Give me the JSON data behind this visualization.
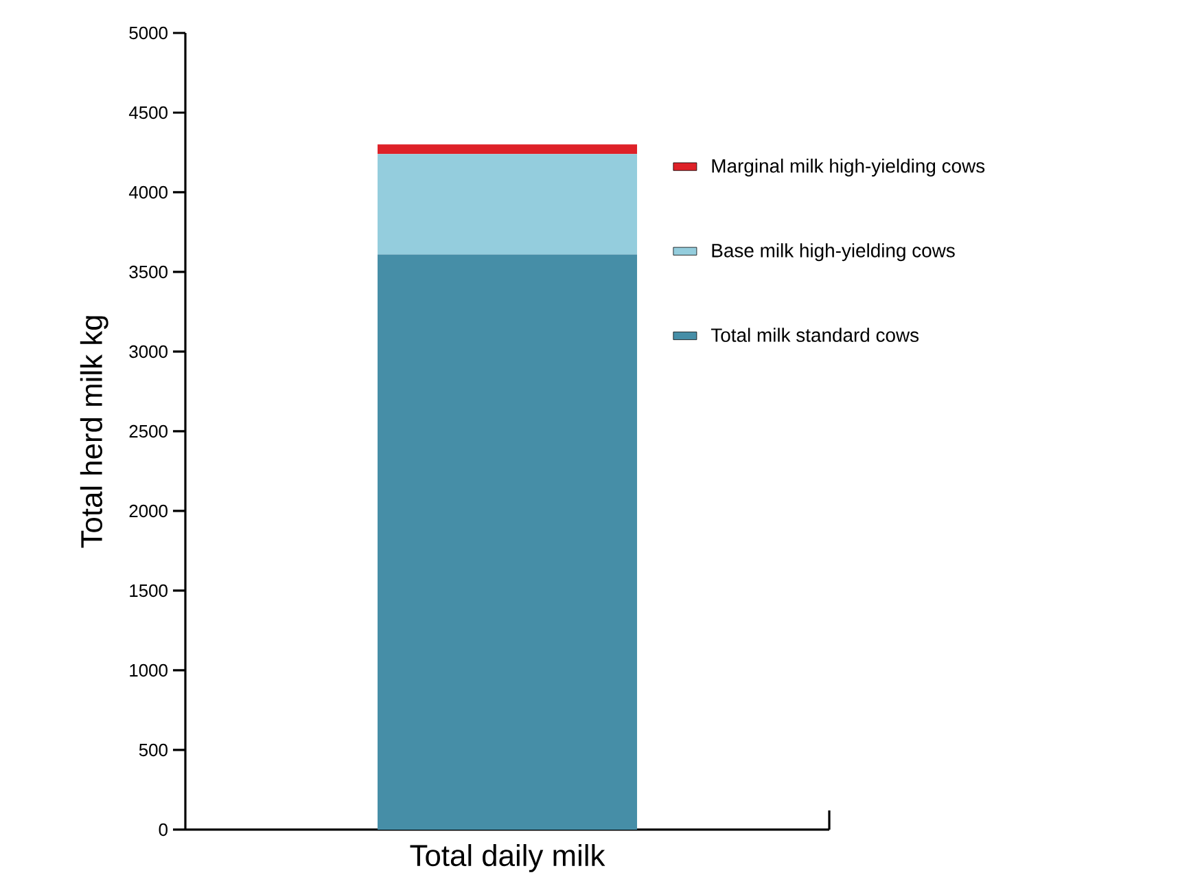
{
  "chart_data": {
    "type": "bar",
    "stacked": true,
    "ylabel": "Total herd milk kg",
    "categories": [
      "Total daily milk"
    ],
    "series": [
      {
        "name": "Total milk standard cows",
        "color": "#468ea7",
        "values": [
          3610
        ]
      },
      {
        "name": "Base milk high-yielding cows",
        "color": "#94cddd",
        "values": [
          630
        ]
      },
      {
        "name": "Marginal milk high-yielding cows",
        "color": "#de2128",
        "values": [
          60
        ]
      }
    ],
    "ylim": [
      0,
      5000
    ],
    "yticks": [
      0,
      500,
      1000,
      1500,
      2000,
      2500,
      3000,
      3500,
      4000,
      4500,
      5000
    ],
    "legend": "top right"
  }
}
